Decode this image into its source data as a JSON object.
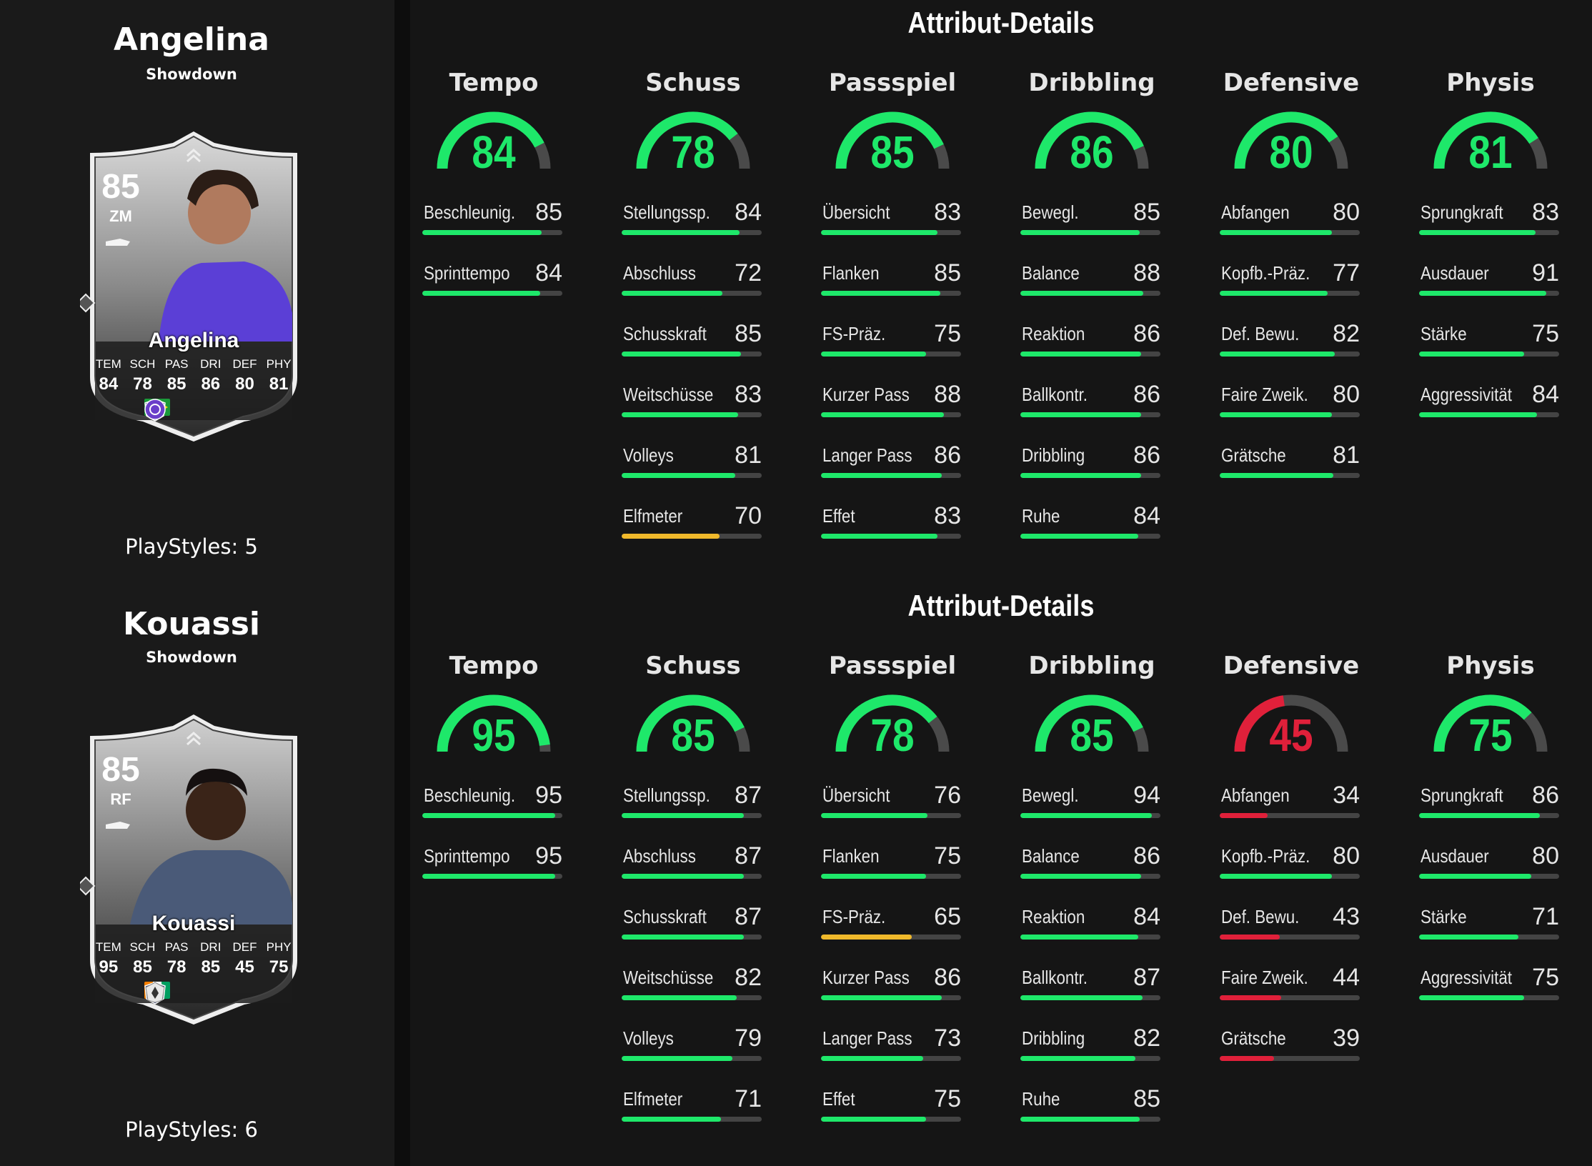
{
  "colors": {
    "green": "#1ee86a",
    "yellow": "#f0b92b",
    "red": "#e0203a",
    "track": "#4a4a4a"
  },
  "players": [
    {
      "name": "Angelina",
      "version": "Showdown",
      "playstyles": "PlayStyles: 5",
      "card": {
        "rating": "85",
        "position": "ZM",
        "name": "Angelina",
        "labels": [
          "TEM",
          "SCH",
          "PAS",
          "DRI",
          "DEF",
          "PHY"
        ],
        "values": [
          "84",
          "78",
          "85",
          "86",
          "80",
          "81"
        ],
        "flag": "brazil-flag-icon",
        "league": "nwsl-badge-icon",
        "club": "orlando-pride-badge-icon"
      },
      "details": {
        "title": "Attribut-Details",
        "categories": [
          {
            "name": "Tempo",
            "value": 84,
            "attrs": [
              {
                "label": "Beschleunig.",
                "value": 85
              },
              {
                "label": "Sprinttempo",
                "value": 84
              }
            ]
          },
          {
            "name": "Schuss",
            "value": 78,
            "attrs": [
              {
                "label": "Stellungssp.",
                "value": 84
              },
              {
                "label": "Abschluss",
                "value": 72
              },
              {
                "label": "Schusskraft",
                "value": 85
              },
              {
                "label": "Weitschüsse",
                "value": 83
              },
              {
                "label": "Volleys",
                "value": 81
              },
              {
                "label": "Elfmeter",
                "value": 70
              }
            ]
          },
          {
            "name": "Passspiel",
            "value": 85,
            "attrs": [
              {
                "label": "Übersicht",
                "value": 83
              },
              {
                "label": "Flanken",
                "value": 85
              },
              {
                "label": "FS-Präz.",
                "value": 75
              },
              {
                "label": "Kurzer Pass",
                "value": 88
              },
              {
                "label": "Langer Pass",
                "value": 86
              },
              {
                "label": "Effet",
                "value": 83
              }
            ]
          },
          {
            "name": "Dribbling",
            "value": 86,
            "attrs": [
              {
                "label": "Bewegl.",
                "value": 85
              },
              {
                "label": "Balance",
                "value": 88
              },
              {
                "label": "Reaktion",
                "value": 86
              },
              {
                "label": "Ballkontr.",
                "value": 86
              },
              {
                "label": "Dribbling",
                "value": 86
              },
              {
                "label": "Ruhe",
                "value": 84
              }
            ]
          },
          {
            "name": "Defensive",
            "value": 80,
            "attrs": [
              {
                "label": "Abfangen",
                "value": 80
              },
              {
                "label": "Kopfb.-Präz.",
                "value": 77
              },
              {
                "label": "Def. Bewu.",
                "value": 82
              },
              {
                "label": "Faire Zweik.",
                "value": 80
              },
              {
                "label": "Grätsche",
                "value": 81
              }
            ]
          },
          {
            "name": "Physis",
            "value": 81,
            "attrs": [
              {
                "label": "Sprungkraft",
                "value": 83
              },
              {
                "label": "Ausdauer",
                "value": 91
              },
              {
                "label": "Stärke",
                "value": 75
              },
              {
                "label": "Aggressivität",
                "value": 84
              }
            ]
          }
        ]
      }
    },
    {
      "name": "Kouassi",
      "version": "Showdown",
      "playstyles": "PlayStyles: 6",
      "card": {
        "rating": "85",
        "position": "RF",
        "name": "Kouassi",
        "labels": [
          "TEM",
          "SCH",
          "PAS",
          "DRI",
          "DEF",
          "PHY"
        ],
        "values": [
          "95",
          "85",
          "78",
          "85",
          "45",
          "75"
        ],
        "flag": "ivory-coast-flag-icon",
        "league": "nwsl-badge-icon",
        "club": "washington-spirit-badge-icon"
      },
      "details": {
        "title": "Attribut-Details",
        "categories": [
          {
            "name": "Tempo",
            "value": 95,
            "attrs": [
              {
                "label": "Beschleunig.",
                "value": 95
              },
              {
                "label": "Sprinttempo",
                "value": 95
              }
            ]
          },
          {
            "name": "Schuss",
            "value": 85,
            "attrs": [
              {
                "label": "Stellungssp.",
                "value": 87
              },
              {
                "label": "Abschluss",
                "value": 87
              },
              {
                "label": "Schusskraft",
                "value": 87
              },
              {
                "label": "Weitschüsse",
                "value": 82
              },
              {
                "label": "Volleys",
                "value": 79
              },
              {
                "label": "Elfmeter",
                "value": 71
              }
            ]
          },
          {
            "name": "Passspiel",
            "value": 78,
            "attrs": [
              {
                "label": "Übersicht",
                "value": 76
              },
              {
                "label": "Flanken",
                "value": 75
              },
              {
                "label": "FS-Präz.",
                "value": 65
              },
              {
                "label": "Kurzer Pass",
                "value": 86
              },
              {
                "label": "Langer Pass",
                "value": 73
              },
              {
                "label": "Effet",
                "value": 75
              }
            ]
          },
          {
            "name": "Dribbling",
            "value": 85,
            "attrs": [
              {
                "label": "Bewegl.",
                "value": 94
              },
              {
                "label": "Balance",
                "value": 86
              },
              {
                "label": "Reaktion",
                "value": 84
              },
              {
                "label": "Ballkontr.",
                "value": 87
              },
              {
                "label": "Dribbling",
                "value": 82
              },
              {
                "label": "Ruhe",
                "value": 85
              }
            ]
          },
          {
            "name": "Defensive",
            "value": 45,
            "attrs": [
              {
                "label": "Abfangen",
                "value": 34
              },
              {
                "label": "Kopfb.-Präz.",
                "value": 80
              },
              {
                "label": "Def. Bewu.",
                "value": 43
              },
              {
                "label": "Faire Zweik.",
                "value": 44
              },
              {
                "label": "Grätsche",
                "value": 39
              }
            ]
          },
          {
            "name": "Physis",
            "value": 75,
            "attrs": [
              {
                "label": "Sprungkraft",
                "value": 86
              },
              {
                "label": "Ausdauer",
                "value": 80
              },
              {
                "label": "Stärke",
                "value": 71
              },
              {
                "label": "Aggressivität",
                "value": 75
              }
            ]
          }
        ]
      }
    }
  ]
}
